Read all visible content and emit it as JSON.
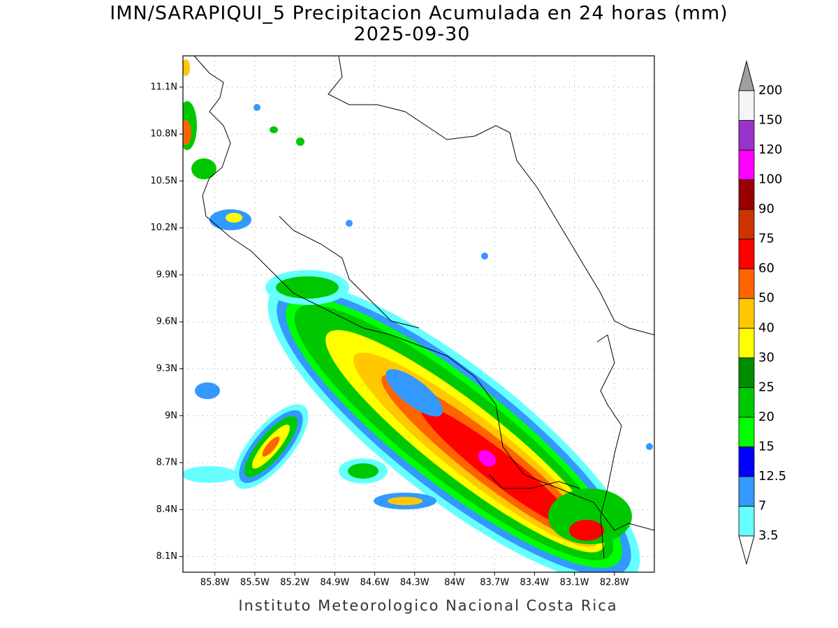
{
  "map": {
    "title": "IMN/SARAPIQUI_5 Precipitacion Acumulada en 24 horas (mm)",
    "subtitle": "2025-09-30",
    "footer": "Instituto Meteorologico Nacional Costa Rica",
    "xlim": [
      -86.04,
      -82.5
    ],
    "ylim": [
      8.0,
      11.3
    ],
    "grid": true,
    "xticks": [
      {
        "value": -85.8,
        "label": "85.8W"
      },
      {
        "value": -85.5,
        "label": "85.5W"
      },
      {
        "value": -85.2,
        "label": "85.2W"
      },
      {
        "value": -84.9,
        "label": "84.9W"
      },
      {
        "value": -84.6,
        "label": "84.6W"
      },
      {
        "value": -84.3,
        "label": "84.3W"
      },
      {
        "value": -84.0,
        "label": "84W"
      },
      {
        "value": -83.7,
        "label": "83.7W"
      },
      {
        "value": -83.4,
        "label": "83.4W"
      },
      {
        "value": -83.1,
        "label": "83.1W"
      },
      {
        "value": -82.8,
        "label": "82.8W"
      }
    ],
    "yticks": [
      {
        "value": 8.1,
        "label": "8.1N"
      },
      {
        "value": 8.4,
        "label": "8.4N"
      },
      {
        "value": 8.7,
        "label": "8.7N"
      },
      {
        "value": 9.0,
        "label": "9N"
      },
      {
        "value": 9.3,
        "label": "9.3N"
      },
      {
        "value": 9.6,
        "label": "9.6N"
      },
      {
        "value": 9.9,
        "label": "9.9N"
      },
      {
        "value": 10.2,
        "label": "10.2N"
      },
      {
        "value": 10.5,
        "label": "10.5N"
      },
      {
        "value": 10.8,
        "label": "10.8N"
      },
      {
        "value": 11.1,
        "label": "11.1N"
      }
    ],
    "colorbar": {
      "levels": [
        3.5,
        7,
        12.5,
        15,
        20,
        25,
        30,
        40,
        50,
        60,
        75,
        90,
        100,
        120,
        150,
        200
      ],
      "colors": [
        "#66ffff",
        "#3399ff",
        "#0000ff",
        "#00ff00",
        "#00c800",
        "#008c00",
        "#ffff00",
        "#ffc800",
        "#ff6400",
        "#ff0000",
        "#cc3300",
        "#990000",
        "#ff00ff",
        "#9933cc",
        "#f5f5f5"
      ]
    }
  }
}
